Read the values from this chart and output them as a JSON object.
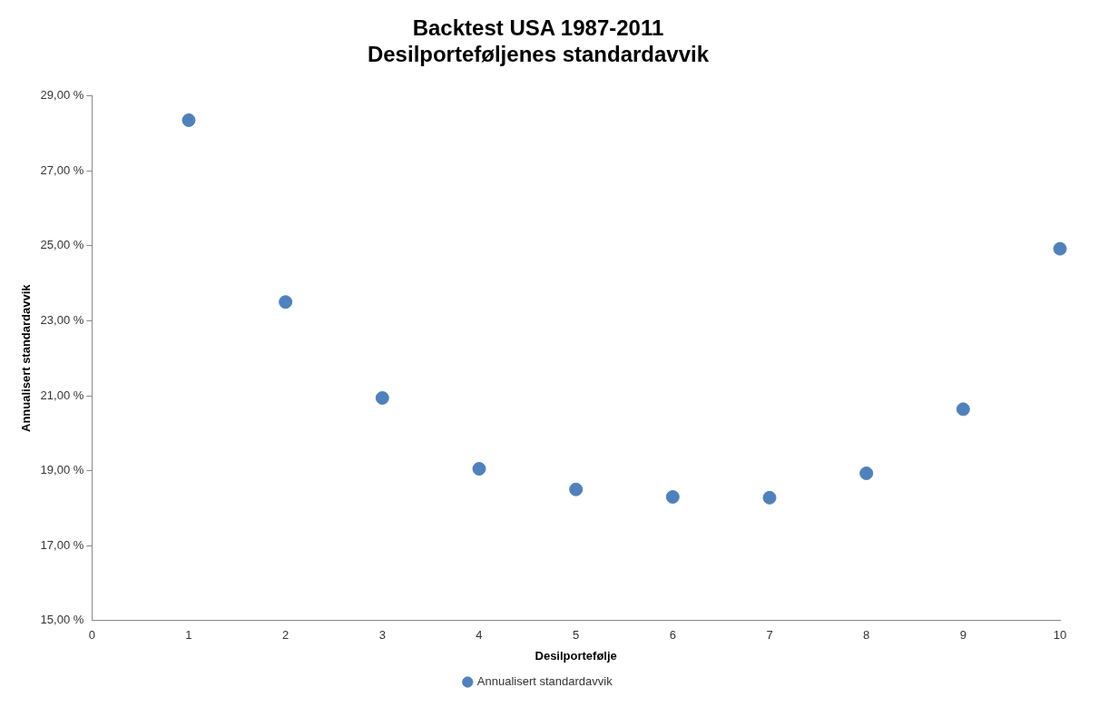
{
  "chart_data": {
    "type": "scatter",
    "title": [
      "Backtest USA 1987-2011",
      "Desilporteføljenes standardavvik"
    ],
    "xlabel": "Desilportefølje",
    "ylabel": "Annualisert standardavvik",
    "x": [
      1,
      2,
      3,
      4,
      5,
      6,
      7,
      8,
      9,
      10
    ],
    "series": [
      {
        "name": "Annualisert standardavvik",
        "color": "#4f81bd",
        "values": [
          28.35,
          23.5,
          20.94,
          19.05,
          18.5,
          18.3,
          18.28,
          18.93,
          20.64,
          24.92
        ]
      }
    ],
    "xlim": [
      0,
      10
    ],
    "xticks": [
      0,
      1,
      2,
      3,
      4,
      5,
      6,
      7,
      8,
      9,
      10
    ],
    "ylim": [
      15,
      29
    ],
    "yticks": [
      {
        "value": 15,
        "label": "15,00 %"
      },
      {
        "value": 17,
        "label": "17,00 %"
      },
      {
        "value": 19,
        "label": "19,00 %"
      },
      {
        "value": 21,
        "label": "21,00 %"
      },
      {
        "value": 23,
        "label": "23,00 %"
      },
      {
        "value": 25,
        "label": "25,00 %"
      },
      {
        "value": 27,
        "label": "27,00 %"
      },
      {
        "value": 29,
        "label": "29,00 %"
      }
    ],
    "grid": false,
    "legend": "bottom",
    "marker": "circle"
  }
}
